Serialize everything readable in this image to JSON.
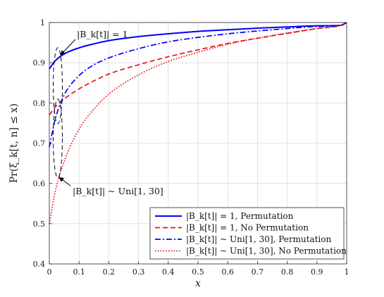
{
  "chart_data": {
    "type": "line",
    "xlabel": "x",
    "ylabel": "Pr(ξ_k[t, n] ≤ x)",
    "xlim": [
      0,
      1
    ],
    "ylim": [
      0.4,
      1
    ],
    "x_ticks": [
      "0",
      "0.1",
      "0.2",
      "0.3",
      "0.4",
      "0.5",
      "0.6",
      "0.7",
      "0.8",
      "0.9",
      "1"
    ],
    "y_ticks": [
      "0.4",
      "0.5",
      "0.6",
      "0.7",
      "0.8",
      "0.9",
      "1"
    ],
    "grid": true,
    "legend_position": "bottom-right",
    "x": [
      0,
      0.02,
      0.05,
      0.1,
      0.15,
      0.2,
      0.3,
      0.4,
      0.5,
      0.6,
      0.7,
      0.8,
      0.9,
      0.98,
      1.0
    ],
    "series": [
      {
        "name": "|B_k[t]| = 1, Permutation",
        "color": "#0000ff",
        "style": "solid",
        "values": [
          0.885,
          0.905,
          0.922,
          0.937,
          0.947,
          0.955,
          0.965,
          0.972,
          0.978,
          0.982,
          0.986,
          0.989,
          0.992,
          0.993,
          1.0
        ]
      },
      {
        "name": "|B_k[t]| = 1, No Permutation",
        "color": "#e8141a",
        "style": "dashed",
        "values": [
          0.77,
          0.79,
          0.81,
          0.835,
          0.855,
          0.872,
          0.895,
          0.915,
          0.932,
          0.948,
          0.961,
          0.973,
          0.985,
          0.993,
          1.0
        ]
      },
      {
        "name": "|B_k[t]| ~ Uni[1, 30], Permutation",
        "color": "#0000ff",
        "style": "dashdot",
        "values": [
          0.69,
          0.76,
          0.82,
          0.868,
          0.895,
          0.912,
          0.935,
          0.952,
          0.963,
          0.972,
          0.979,
          0.985,
          0.99,
          0.993,
          1.0
        ]
      },
      {
        "name": "|B_k[t]| ~ Uni[1, 30], No Permutation",
        "color": "#e8141a",
        "style": "dotted",
        "values": [
          0.5,
          0.58,
          0.655,
          0.735,
          0.785,
          0.822,
          0.87,
          0.903,
          0.926,
          0.946,
          0.961,
          0.974,
          0.985,
          0.993,
          1.0
        ]
      }
    ],
    "annotations": [
      {
        "text": "|B_k[t]| = 1"
      },
      {
        "text": "|B_k[t]| ~ Uni[1, 30]"
      }
    ]
  }
}
